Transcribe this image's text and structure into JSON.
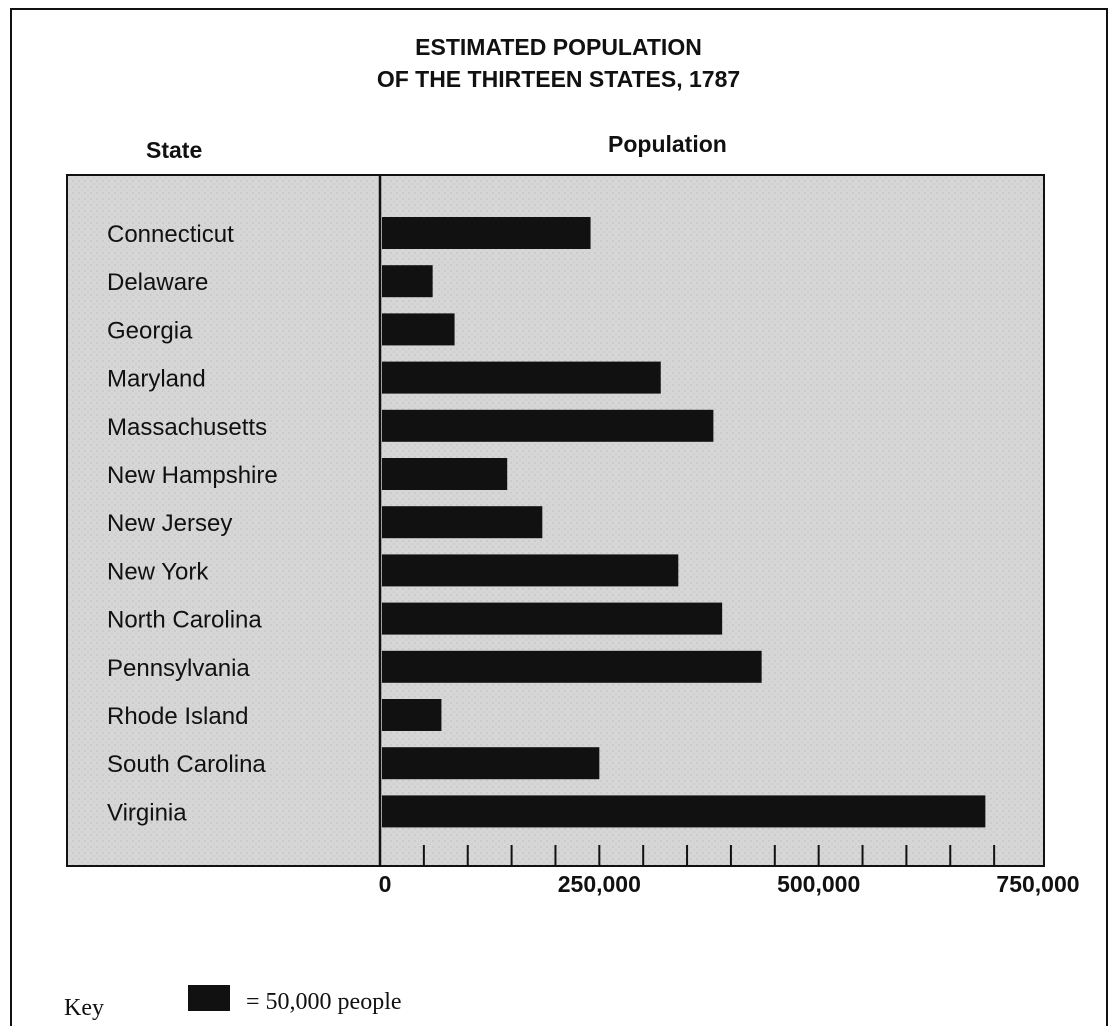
{
  "chart_data": {
    "type": "bar",
    "orientation": "horizontal",
    "title_line1": "ESTIMATED POPULATION",
    "title_line2": "OF THE THIRTEEN STATES, 1787",
    "ylabel": "State",
    "xlabel": "Population",
    "categories": [
      "Connecticut",
      "Delaware",
      "Georgia",
      "Maryland",
      "Massachusetts",
      "New Hampshire",
      "New Jersey",
      "New York",
      "North Carolina",
      "Pennsylvania",
      "Rhode Island",
      "South Carolina",
      "Virginia"
    ],
    "values": [
      240000,
      60000,
      85000,
      320000,
      380000,
      145000,
      185000,
      340000,
      390000,
      435000,
      70000,
      250000,
      690000
    ],
    "xlim": [
      0,
      750000
    ],
    "xticks": [
      0,
      250000,
      500000,
      750000
    ],
    "xtick_labels": [
      "0",
      "250,000",
      "500,000",
      "750,000"
    ],
    "minor_tick_step": 50000,
    "plot_background": "#d9d9d9",
    "bar_color": "#111111",
    "key": {
      "label": "Key",
      "text": "= 50,000 people"
    }
  }
}
